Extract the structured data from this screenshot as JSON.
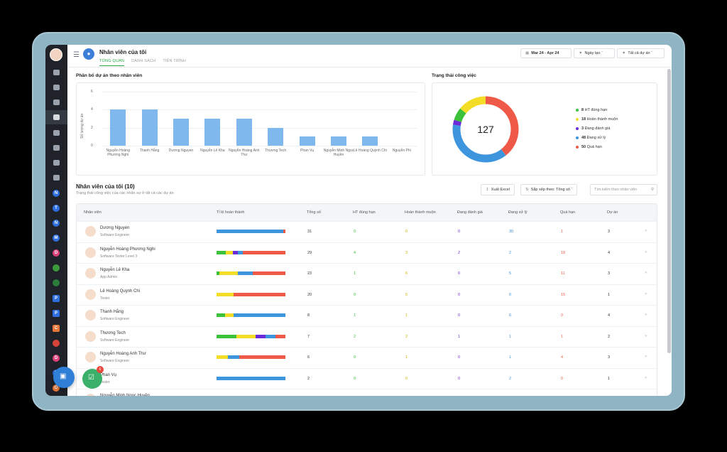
{
  "header": {
    "title": "Nhân viên của tôi",
    "tabs": [
      {
        "label": "TỔNG QUAN",
        "active": true
      },
      {
        "label": "DANH SÁCH",
        "active": false
      },
      {
        "label": "TIẾN TRÌNH",
        "active": false
      }
    ],
    "date_range": "Mar 24 - Apr 24",
    "sort_filter": "Ngày tạo",
    "project_filter": "Tất cả dự án"
  },
  "project_chart": {
    "title": "Phân bổ dự án theo nhân viên",
    "chart_data": {
      "type": "bar",
      "ylabel": "Số lượng dự án",
      "ylim": [
        0,
        6
      ],
      "yticks": [
        "6",
        "4",
        "2",
        "0"
      ],
      "categories": [
        "Nguyễn Hoàng Phương Nghi",
        "Thanh Hằng",
        "Dương Nguyen",
        "Nguyễn Lê Kha",
        "Nguyễn Hoàng Anh Thư",
        "Thương Tech",
        "Phan Vụ",
        "Nguyễn Minh Ngọc Huyền",
        "Lê Hoàng Quỳnh Chi",
        "Nguyễn Phi"
      ],
      "values": [
        4,
        4,
        3,
        3,
        3,
        2,
        1,
        1,
        1,
        0
      ]
    }
  },
  "status_chart": {
    "title": "Trạng thái công việc",
    "total": "127",
    "chart_data": {
      "type": "pie",
      "slices": [
        {
          "count": 8,
          "label": "HT đúng hạn",
          "color": "#3cc13b",
          "count_text": "8"
        },
        {
          "count": 18,
          "label": "Hoàn thành muộn",
          "color": "#f4dd27",
          "count_text": "18"
        },
        {
          "count": 3,
          "label": "Đang đánh giá",
          "color": "#6c2bd9",
          "count_text": "3"
        },
        {
          "count": 48,
          "label": "Đang xử lý",
          "color": "#3d95de",
          "count_text": "48"
        },
        {
          "count": 50,
          "label": "Quá hạn",
          "color": "#ef5a48",
          "count_text": "50"
        }
      ]
    }
  },
  "list": {
    "title": "Nhân viên của tôi (10)",
    "subtitle": "Trạng thái công việc của các nhân sự ở tất cả các dự án",
    "export_label": "Xuất Excel",
    "sort_label": "Sắp xếp theo: Tổng số",
    "search_placeholder": "Tìm kiếm theo nhân viên",
    "columns": [
      "Nhân viên",
      "Tỉ lệ hoàn thành",
      "Tổng số",
      "HT đúng hạn",
      "Hoàn thành muộn",
      "Đang đánh giá",
      "Đang xử lý",
      "Quá hạn",
      "Dự án"
    ],
    "rows": [
      {
        "name": "Dương Nguyen",
        "role": "Software Engineer",
        "total": "31",
        "ontime": "0",
        "late": "0",
        "review": "0",
        "progress": "30",
        "overdue": "1",
        "projects": "3",
        "bar": [
          0,
          0,
          0,
          30,
          1
        ]
      },
      {
        "name": "Nguyễn Hoàng Phương Nghi",
        "role": "Software Tester Level 3",
        "total": "29",
        "ontime": "4",
        "late": "3",
        "review": "2",
        "progress": "2",
        "overdue": "18",
        "projects": "4",
        "bar": [
          4,
          3,
          2,
          2,
          18
        ]
      },
      {
        "name": "Nguyễn Lê Kha",
        "role": "App Admin",
        "total": "23",
        "ontime": "1",
        "late": "6",
        "review": "0",
        "progress": "5",
        "overdue": "11",
        "projects": "3",
        "bar": [
          1,
          6,
          0,
          5,
          11
        ]
      },
      {
        "name": "Lê Hoàng Quỳnh Chi",
        "role": "Tester",
        "total": "20",
        "ontime": "0",
        "late": "5",
        "review": "0",
        "progress": "0",
        "overdue": "15",
        "projects": "1",
        "bar": [
          0,
          5,
          0,
          0,
          15
        ]
      },
      {
        "name": "Thanh Hằng",
        "role": "Software Engineer",
        "total": "8",
        "ontime": "1",
        "late": "1",
        "review": "0",
        "progress": "6",
        "overdue": "0",
        "projects": "4",
        "bar": [
          1,
          1,
          0,
          6,
          0
        ]
      },
      {
        "name": "Thương Tech",
        "role": "Software Engineer",
        "total": "7",
        "ontime": "2",
        "late": "2",
        "review": "1",
        "progress": "1",
        "overdue": "1",
        "projects": "2",
        "bar": [
          2,
          2,
          1,
          1,
          1
        ]
      },
      {
        "name": "Nguyễn Hoàng Anh Thư",
        "role": "Software Engineer",
        "total": "6",
        "ontime": "0",
        "late": "1",
        "review": "0",
        "progress": "1",
        "overdue": "4",
        "projects": "3",
        "bar": [
          0,
          1,
          0,
          1,
          4
        ]
      },
      {
        "name": "Phan Vụ",
        "role": "Tester",
        "total": "2",
        "ontime": "0",
        "late": "0",
        "review": "0",
        "progress": "2",
        "overdue": "0",
        "projects": "1",
        "bar": [
          0,
          0,
          0,
          2,
          0
        ]
      },
      {
        "name": "Nguyễn Minh Ngọc Huyền",
        "role": "",
        "total": "",
        "ontime": "",
        "late": "",
        "review": "",
        "progress": "",
        "overdue": "",
        "projects": "",
        "bar": [
          0,
          0,
          0,
          0,
          0
        ]
      }
    ]
  },
  "badge_count": "6",
  "colors": {
    "ontime": "#3cc13b",
    "late": "#f4dd27",
    "review": "#6c2bd9",
    "progress": "#3d95de",
    "overdue": "#ef5a48",
    "accent": "#27a844"
  }
}
